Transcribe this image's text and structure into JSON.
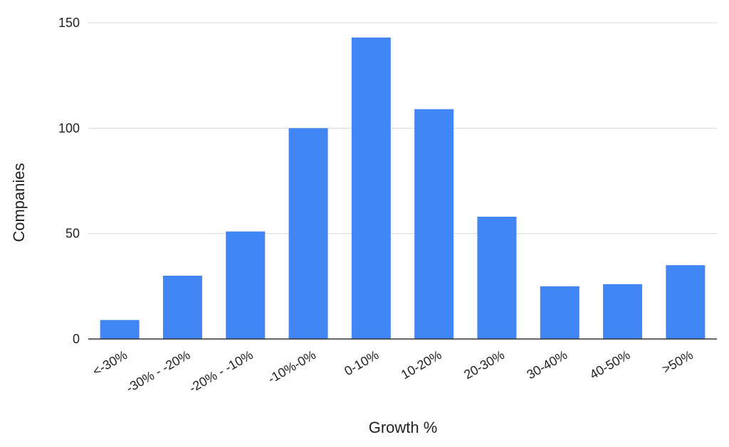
{
  "chart_data": {
    "type": "bar",
    "categories": [
      "<-30%",
      "-30% - -20%",
      "-20% - -10%",
      "-10%-0%",
      "0-10%",
      "10-20%",
      "20-30%",
      "30-40%",
      "40-50%",
      ">50%"
    ],
    "values": [
      9,
      30,
      51,
      100,
      143,
      109,
      58,
      25,
      26,
      35
    ],
    "xlabel": "Growth %",
    "ylabel": "Companies",
    "ylim": [
      0,
      150
    ],
    "yticks": [
      0,
      50,
      100,
      150
    ],
    "grid": true,
    "legend": "none",
    "colors": {
      "bar": "#4285F4",
      "grid": "#D9D9D9",
      "axis": "#333333",
      "text": "#222222"
    }
  }
}
